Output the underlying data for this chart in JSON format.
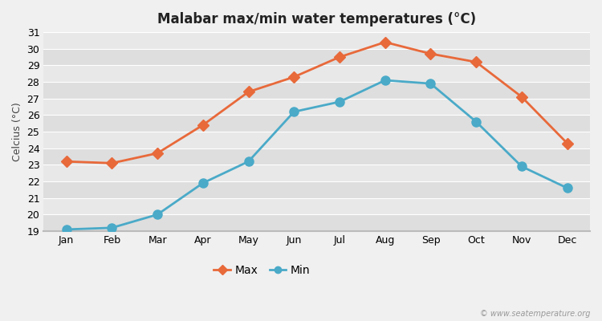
{
  "title": "Malabar max/min water temperatures (°C)",
  "ylabel": "Celcius (°C)",
  "months": [
    "Jan",
    "Feb",
    "Mar",
    "Apr",
    "May",
    "Jun",
    "Jul",
    "Aug",
    "Sep",
    "Oct",
    "Nov",
    "Dec"
  ],
  "max_temps": [
    23.2,
    23.1,
    23.7,
    25.4,
    27.4,
    28.3,
    29.5,
    30.4,
    29.7,
    29.2,
    27.1,
    24.3
  ],
  "min_temps": [
    19.1,
    19.2,
    20.0,
    21.9,
    23.2,
    26.2,
    26.8,
    28.1,
    27.9,
    25.6,
    22.9,
    21.6
  ],
  "max_color": "#e8693a",
  "min_color": "#4aaac8",
  "bg_color": "#f0f0f0",
  "plot_bg_color": "#e8e8e8",
  "stripe_light": "#e8e8e8",
  "stripe_dark": "#dedede",
  "grid_color": "#ffffff",
  "bottom_line_color": "#bbbbbb",
  "ylim_min": 19,
  "ylim_max": 31,
  "yticks": [
    19,
    20,
    21,
    22,
    23,
    24,
    25,
    26,
    27,
    28,
    29,
    30,
    31
  ],
  "legend_labels": [
    "Max",
    "Min"
  ],
  "watermark": "© www.seatemperature.org",
  "marker_size_max": 7,
  "marker_size_min": 8,
  "line_width": 2.0,
  "title_fontsize": 12,
  "tick_fontsize": 9,
  "ylabel_fontsize": 9
}
